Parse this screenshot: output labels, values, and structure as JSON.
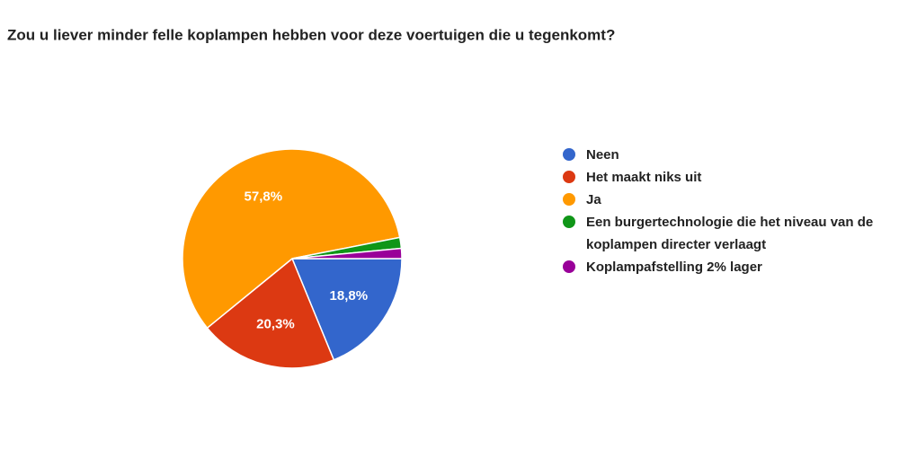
{
  "chart_data": {
    "type": "pie",
    "title": "Zou u liever minder felle koplampen hebben voor deze voertuigen die u tegenkomt?",
    "categories": [
      "Neen",
      "Het maakt niks uit",
      "Ja",
      "Een burgertechnologie die het niveau van de koplampen directer verlaagt",
      "Koplampafstelling 2% lager"
    ],
    "values": [
      18.8,
      20.3,
      57.8,
      1.6,
      1.5
    ],
    "value_labels": [
      "18,8%",
      "20,3%",
      "57,8%",
      null,
      null
    ],
    "colors": [
      "#3366cc",
      "#dc3912",
      "#ff9900",
      "#109618",
      "#990099"
    ]
  }
}
